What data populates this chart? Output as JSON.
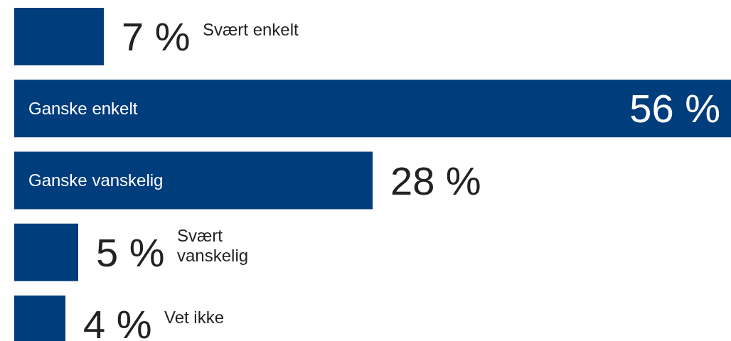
{
  "chart_data": {
    "type": "bar",
    "orientation": "horizontal",
    "categories": [
      "Svært enkelt",
      "Ganske enkelt",
      "Ganske vanskelig",
      "Svært vanskelig",
      "Vet ikke"
    ],
    "values": [
      7,
      56,
      28,
      5,
      4
    ],
    "value_labels": [
      "7 %",
      "56 %",
      "28 %",
      "5 %",
      "4 %"
    ],
    "color": "#003d7c"
  }
}
